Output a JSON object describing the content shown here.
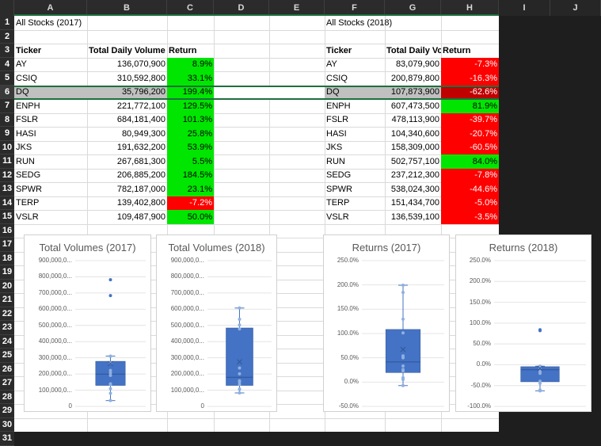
{
  "columns": [
    "A",
    "B",
    "C",
    "D",
    "E",
    "F",
    "G",
    "H",
    "I",
    "J"
  ],
  "rows": [
    "1",
    "2",
    "3",
    "4",
    "5",
    "6",
    "7",
    "8",
    "9",
    "10",
    "11",
    "12",
    "13",
    "14",
    "15",
    "16",
    "17",
    "18",
    "19",
    "20",
    "21",
    "22",
    "23",
    "24",
    "25",
    "26",
    "27",
    "28",
    "29",
    "30",
    "31"
  ],
  "table2017": {
    "title": "All Stocks (2017)",
    "headers": [
      "Ticker",
      "Total Daily Volume",
      "Return"
    ],
    "rows": [
      [
        "AY",
        "136,070,900",
        "8.9%",
        "pos"
      ],
      [
        "CSIQ",
        "310,592,800",
        "33.1%",
        "pos"
      ],
      [
        "DQ",
        "35,796,200",
        "199.4%",
        "pos"
      ],
      [
        "ENPH",
        "221,772,100",
        "129.5%",
        "pos"
      ],
      [
        "FSLR",
        "684,181,400",
        "101.3%",
        "pos"
      ],
      [
        "HASI",
        "80,949,300",
        "25.8%",
        "pos"
      ],
      [
        "JKS",
        "191,632,200",
        "53.9%",
        "pos"
      ],
      [
        "RUN",
        "267,681,300",
        "5.5%",
        "pos"
      ],
      [
        "SEDG",
        "206,885,200",
        "184.5%",
        "pos"
      ],
      [
        "SPWR",
        "782,187,000",
        "23.1%",
        "pos"
      ],
      [
        "TERP",
        "139,402,800",
        "-7.2%",
        "neg"
      ],
      [
        "VSLR",
        "109,487,900",
        "50.0%",
        "pos"
      ]
    ]
  },
  "table2018": {
    "title": "All Stocks (2018)",
    "headers": [
      "Ticker",
      "Total Daily Vo",
      "Return"
    ],
    "rows": [
      [
        "AY",
        "83,079,900",
        "-7.3%",
        "neg"
      ],
      [
        "CSIQ",
        "200,879,800",
        "-16.3%",
        "neg"
      ],
      [
        "DQ",
        "107,873,900",
        "-62.6%",
        "neg"
      ],
      [
        "ENPH",
        "607,473,500",
        "81.9%",
        "pos"
      ],
      [
        "FSLR",
        "478,113,900",
        "-39.7%",
        "neg"
      ],
      [
        "HASI",
        "104,340,600",
        "-20.7%",
        "neg"
      ],
      [
        "JKS",
        "158,309,000",
        "-60.5%",
        "neg"
      ],
      [
        "RUN",
        "502,757,100",
        "84.0%",
        "pos"
      ],
      [
        "SEDG",
        "237,212,300",
        "-7.8%",
        "neg"
      ],
      [
        "SPWR",
        "538,024,300",
        "-44.6%",
        "neg"
      ],
      [
        "TERP",
        "151,434,700",
        "-5.0%",
        "neg"
      ],
      [
        "VSLR",
        "136,539,100",
        "-3.5%",
        "neg"
      ]
    ]
  },
  "colors": {
    "positive": "#00e600",
    "negative": "#ff0000",
    "selected_negative": "#c00000",
    "selected_row": "#c0c0c0",
    "box_fill": "#4472c4",
    "selection_border": "#1e6f3e"
  },
  "chart_data": [
    {
      "type": "box",
      "title": "Total Volumes (2017)",
      "yticks": [
        "0",
        "100,000,0...",
        "200,000,0...",
        "300,000,0...",
        "400,000,0...",
        "500,000,0...",
        "600,000,0...",
        "700,000,0...",
        "800,000,0...",
        "900,000,0..."
      ],
      "ylim": [
        0,
        900000000
      ],
      "values": [
        136070900,
        310592800,
        35796200,
        221772100,
        684181400,
        80949300,
        191632200,
        267681300,
        206885200,
        782187000,
        139402800,
        109487900
      ]
    },
    {
      "type": "box",
      "title": "Total Volumes (2018)",
      "yticks": [
        "0",
        "100,000,0...",
        "200,000,0...",
        "300,000,0...",
        "400,000,0...",
        "500,000,0...",
        "600,000,0...",
        "700,000,0...",
        "800,000,0...",
        "900,000,0..."
      ],
      "ylim": [
        0,
        900000000
      ],
      "values": [
        83079900,
        200879800,
        107873900,
        607473500,
        478113900,
        104340600,
        158309000,
        502757100,
        237212300,
        538024300,
        151434700,
        136539100
      ]
    },
    {
      "type": "box",
      "title": "Returns (2017)",
      "yticks": [
        "-50.0%",
        "0.0%",
        "50.0%",
        "100.0%",
        "150.0%",
        "200.0%",
        "250.0%"
      ],
      "ylim": [
        -50,
        250
      ],
      "values": [
        8.9,
        33.1,
        199.4,
        129.5,
        101.3,
        25.8,
        53.9,
        5.5,
        184.5,
        23.1,
        -7.2,
        50.0
      ]
    },
    {
      "type": "box",
      "title": "Returns (2018)",
      "yticks": [
        "-100.0%",
        "-50.0%",
        "0.0%",
        "50.0%",
        "100.0%",
        "150.0%",
        "200.0%",
        "250.0%"
      ],
      "ylim": [
        -100,
        250
      ],
      "values": [
        -7.3,
        -16.3,
        -62.6,
        81.9,
        -39.7,
        -20.7,
        -60.5,
        84.0,
        -7.8,
        -44.6,
        -5.0,
        -3.5
      ]
    }
  ]
}
